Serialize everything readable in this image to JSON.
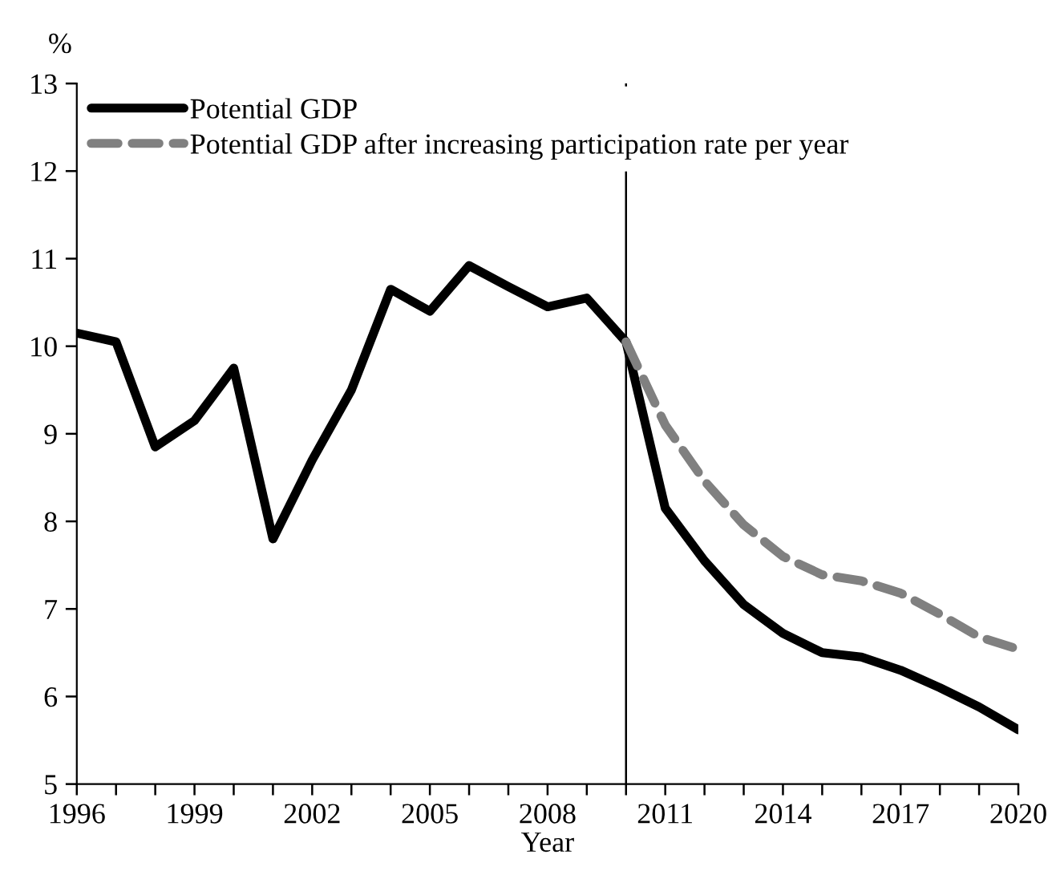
{
  "chart_data": {
    "type": "line",
    "ylabel": "%",
    "xlabel": "Year",
    "x": [
      1996,
      1997,
      1998,
      1999,
      2000,
      2001,
      2002,
      2003,
      2004,
      2005,
      2006,
      2007,
      2008,
      2009,
      2010,
      2011,
      2012,
      2013,
      2014,
      2015,
      2016,
      2017,
      2018,
      2019,
      2020
    ],
    "series": [
      {
        "name": "Potential GDP",
        "color": "#000000",
        "line_style": "solid",
        "values": [
          10.15,
          10.05,
          8.85,
          9.15,
          9.75,
          7.8,
          8.7,
          9.5,
          10.65,
          10.4,
          10.92,
          10.68,
          10.45,
          10.55,
          10.05,
          8.15,
          7.55,
          7.05,
          6.72,
          6.5,
          6.45,
          6.3,
          6.1,
          5.88,
          5.62
        ]
      },
      {
        "name": "Potential GDP after increasing participation rate per year",
        "color": "#808080",
        "line_style": "dashed",
        "values": [
          null,
          null,
          null,
          null,
          null,
          null,
          null,
          null,
          null,
          null,
          null,
          null,
          null,
          null,
          10.05,
          9.1,
          8.46,
          7.96,
          7.6,
          7.39,
          7.32,
          7.18,
          6.94,
          6.68,
          6.54
        ]
      }
    ],
    "xlim": [
      1996,
      2020
    ],
    "xticks": [
      1996,
      {
        "value": 1997,
        "label": null
      },
      {
        "value": 1998,
        "label": null
      },
      1999,
      {
        "value": 2000,
        "label": null
      },
      {
        "value": 2001,
        "label": null
      },
      2002,
      {
        "value": 2003,
        "label": null
      },
      {
        "value": 2004,
        "label": null
      },
      2005,
      {
        "value": 2006,
        "label": null
      },
      {
        "value": 2007,
        "label": null
      },
      2008,
      {
        "value": 2009,
        "label": null
      },
      {
        "value": 2010,
        "label": null
      },
      2011,
      {
        "value": 2012,
        "label": null
      },
      {
        "value": 2013,
        "label": null
      },
      2014,
      {
        "value": 2015,
        "label": null
      },
      {
        "value": 2016,
        "label": null
      },
      2017,
      {
        "value": 2018,
        "label": null
      },
      {
        "value": 2019,
        "label": null
      },
      2020
    ],
    "ylim": [
      5,
      13
    ],
    "yticks": [
      5,
      6,
      7,
      8,
      9,
      10,
      11,
      12,
      13
    ],
    "ref_lines": [
      {
        "axis": "x",
        "value": 2010,
        "color": "#000000"
      }
    ],
    "grid": false,
    "legend": "top left"
  }
}
